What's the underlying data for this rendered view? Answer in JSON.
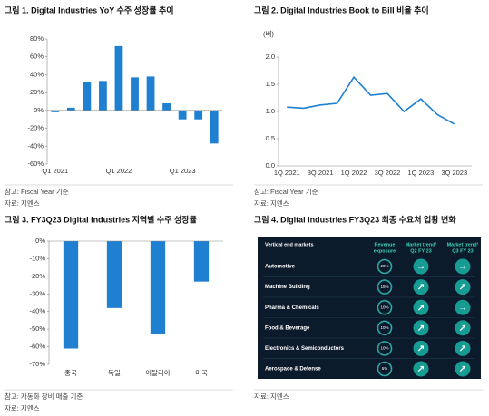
{
  "chart_data": [
    {
      "type": "bar",
      "title": "그림 1. Digital Industries YoY 수주 성장률 추이",
      "categories": [
        "Q1 2021",
        null,
        null,
        null,
        "Q1 2022",
        null,
        null,
        null,
        "Q1 2023",
        null,
        null
      ],
      "values": [
        -2,
        3,
        32,
        33,
        72,
        37,
        38,
        8,
        -10,
        -10,
        -37
      ],
      "color": "#1f7fd0",
      "ylim": [
        -60,
        80
      ],
      "yticks": [
        {
          "value": -60,
          "label": "-60%"
        },
        {
          "value": -40,
          "label": "-40%"
        },
        {
          "value": -20,
          "label": "-20%"
        },
        {
          "value": 0,
          "label": "0%"
        },
        {
          "value": 20,
          "label": "20%"
        },
        {
          "value": 40,
          "label": "40%"
        },
        {
          "value": 60,
          "label": "60%"
        },
        {
          "value": 80,
          "label": "80%"
        }
      ],
      "notes": [
        "참고: Fiscal Year 기준",
        "자료: 지멘스"
      ]
    },
    {
      "type": "line",
      "title": "그림 2. Digital Industries Book to Bill 비율 추이",
      "unit": "(배)",
      "categories": [
        "1Q 2021",
        null,
        "3Q 2021",
        null,
        "1Q 2022",
        null,
        "3Q 2022",
        null,
        "1Q 2023",
        null,
        "3Q 2023"
      ],
      "values": [
        1.08,
        1.06,
        1.12,
        1.15,
        1.63,
        1.3,
        1.33,
        1.0,
        1.23,
        0.94,
        0.77
      ],
      "color": "#1f7fd0",
      "ylim": [
        0,
        2
      ],
      "yticks": [
        {
          "value": 0,
          "label": "0.0"
        },
        0.5,
        {
          "value": 1,
          "label": "1.0"
        },
        1.5,
        {
          "value": 2,
          "label": "2.0"
        }
      ],
      "notes": [
        "참고: Fiscal Year 기준",
        "자료: 지멘스"
      ]
    },
    {
      "type": "bar",
      "title": "그림 3. FY3Q23 Digital Industries 지역별 수주 성장률",
      "categories": [
        "중국",
        "독일",
        "이탈리아",
        "미국"
      ],
      "values": [
        -61,
        -38,
        -53,
        -23
      ],
      "color": "#1f7fd0",
      "ylim": [
        -70,
        0
      ],
      "yticks": [
        {
          "value": -70,
          "label": "-70%"
        },
        {
          "value": -60,
          "label": "-60%"
        },
        {
          "value": -50,
          "label": "-50%"
        },
        {
          "value": -40,
          "label": "-40%"
        },
        {
          "value": -30,
          "label": "-30%"
        },
        {
          "value": -20,
          "label": "-20%"
        },
        {
          "value": -10,
          "label": "-10%"
        },
        {
          "value": 0,
          "label": "0%"
        }
      ],
      "notes": [
        "참고: 자동화 장비 매출 기준",
        "자료: 지멘스"
      ]
    },
    {
      "type": "table",
      "title": "그림 4. Digital Industries FY3Q23 최종 수요처 업황 변화",
      "columns": [
        [
          "Vertical end markets"
        ],
        [
          "Revenue",
          "exposure"
        ],
        [
          "Market trend¹",
          "Q2 FY 23"
        ],
        [
          "Market trend¹",
          "Q3 FY 23"
        ]
      ],
      "rows": [
        [
          "Automotive",
          "20%",
          "→",
          "→"
        ],
        [
          "Machine Building",
          "15%",
          "↗",
          "↗"
        ],
        [
          "Pharma & Chemicals",
          "10%",
          "↗",
          "→"
        ],
        [
          "Food & Beverage",
          "10%",
          "↗",
          "↗"
        ],
        [
          "Electronics & Semiconductors",
          "10%",
          "↗",
          "↗"
        ],
        [
          "Aerospace & Defense",
          "5%",
          "↗",
          "↗"
        ]
      ],
      "notes": [
        "자료: 지멘스"
      ]
    }
  ]
}
